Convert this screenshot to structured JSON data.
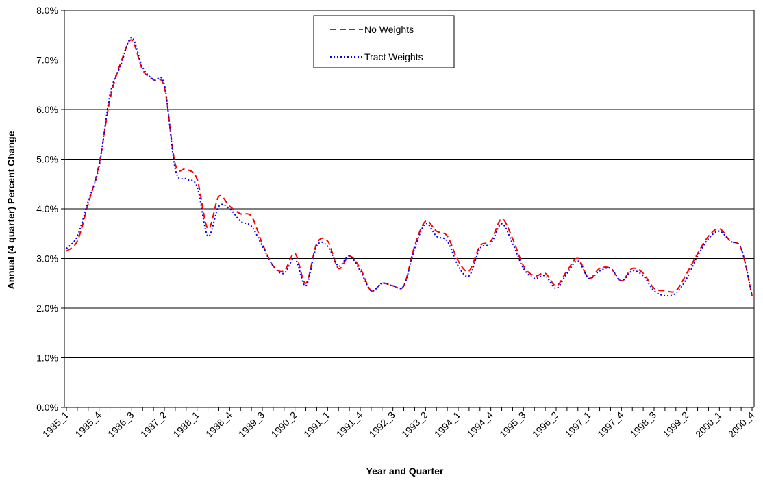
{
  "chart_data": {
    "type": "line",
    "title": "",
    "xlabel": "Year and Quarter",
    "ylabel": "Annual (4 quarter) Percent Change",
    "ylim": [
      0,
      8
    ],
    "y_ticks": [
      "0.0%",
      "1.0%",
      "2.0%",
      "3.0%",
      "4.0%",
      "5.0%",
      "6.0%",
      "7.0%",
      "8.0%"
    ],
    "x_tick_labels": [
      "1985_1",
      "1985_4",
      "1986_3",
      "1987_2",
      "1988_1",
      "1988_4",
      "1989_3",
      "1990_2",
      "1991_1",
      "1991_4",
      "1992_3",
      "1993_2",
      "1994_1",
      "1994_4",
      "1995_3",
      "1996_2",
      "1997_1",
      "1997_4",
      "1998_3",
      "1999_2",
      "2000_1",
      "2000_4"
    ],
    "grid": "horizontal",
    "legend": "top-center",
    "x": [
      "1985_1",
      "1985_2",
      "1985_3",
      "1985_4",
      "1986_1",
      "1986_2",
      "1986_3",
      "1986_4",
      "1987_1",
      "1987_2",
      "1987_3",
      "1987_4",
      "1988_1",
      "1988_2",
      "1988_3",
      "1988_4",
      "1989_1",
      "1989_2",
      "1989_3",
      "1989_4",
      "1990_1",
      "1990_2",
      "1990_3",
      "1990_4",
      "1991_1",
      "1991_2",
      "1991_3",
      "1991_4",
      "1992_1",
      "1992_2",
      "1992_3",
      "1992_4",
      "1993_1",
      "1993_2",
      "1993_3",
      "1993_4",
      "1994_1",
      "1994_2",
      "1994_3",
      "1994_4",
      "1995_1",
      "1995_2",
      "1995_3",
      "1995_4",
      "1996_1",
      "1996_2",
      "1996_3",
      "1996_4",
      "1997_1",
      "1997_2",
      "1997_3",
      "1997_4",
      "1998_1",
      "1998_2",
      "1998_3",
      "1998_4",
      "1999_1",
      "1999_2",
      "1999_3",
      "1999_4",
      "2000_1",
      "2000_2",
      "2000_3",
      "2000_4"
    ],
    "series": [
      {
        "name": "No Weights",
        "color": "#ff0000",
        "dash": "dashed",
        "values": [
          3.15,
          3.35,
          4.1,
          4.9,
          6.2,
          6.95,
          7.4,
          6.8,
          6.6,
          6.45,
          4.9,
          4.8,
          4.6,
          3.6,
          4.25,
          4.05,
          3.9,
          3.85,
          3.3,
          2.85,
          2.75,
          3.1,
          2.5,
          3.3,
          3.35,
          2.8,
          3.05,
          2.8,
          2.35,
          2.5,
          2.45,
          2.45,
          3.25,
          3.75,
          3.55,
          3.45,
          2.95,
          2.75,
          3.25,
          3.35,
          3.8,
          3.4,
          2.85,
          2.65,
          2.7,
          2.45,
          2.75,
          3.0,
          2.6,
          2.8,
          2.8,
          2.55,
          2.8,
          2.7,
          2.4,
          2.35,
          2.35,
          2.7,
          3.1,
          3.45,
          3.6,
          3.35,
          3.2,
          2.25
        ]
      },
      {
        "name": "Tract Weights",
        "color": "#0000ff",
        "dash": "dotted",
        "values": [
          3.2,
          3.45,
          4.15,
          4.85,
          6.3,
          6.9,
          7.45,
          6.85,
          6.6,
          6.5,
          4.8,
          4.6,
          4.45,
          3.45,
          4.05,
          4.0,
          3.75,
          3.65,
          3.25,
          2.85,
          2.7,
          3.0,
          2.45,
          3.25,
          3.25,
          2.85,
          3.05,
          2.75,
          2.35,
          2.5,
          2.45,
          2.45,
          3.2,
          3.7,
          3.45,
          3.35,
          2.85,
          2.65,
          3.2,
          3.3,
          3.7,
          3.3,
          2.8,
          2.6,
          2.65,
          2.4,
          2.7,
          2.95,
          2.6,
          2.75,
          2.8,
          2.55,
          2.75,
          2.65,
          2.35,
          2.25,
          2.3,
          2.6,
          3.05,
          3.4,
          3.55,
          3.35,
          3.2,
          2.25
        ]
      }
    ]
  }
}
